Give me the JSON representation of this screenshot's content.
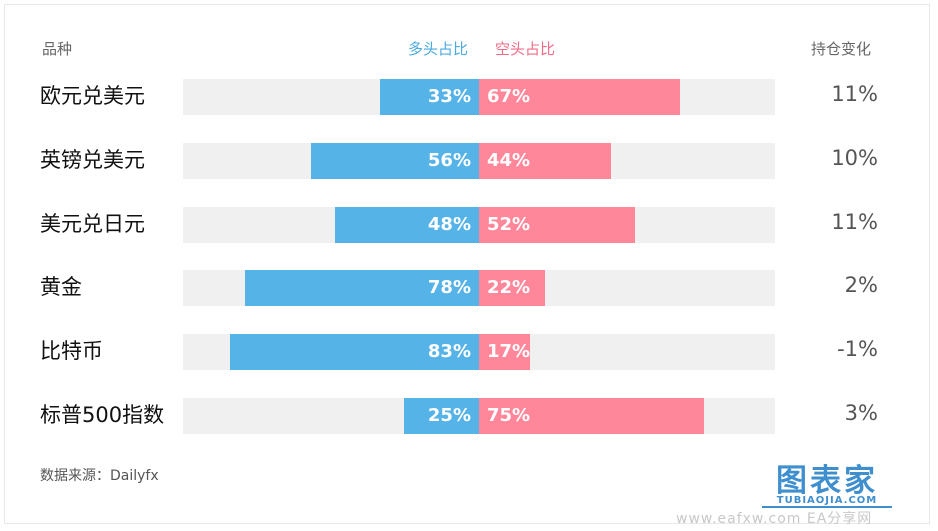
{
  "headers": {
    "name": "品种",
    "long": "多头占比",
    "short": "空头占比",
    "change": "持仓变化"
  },
  "colors": {
    "long": "#55b3e8",
    "short": "#ff8799",
    "track": "#f0f0f0",
    "long_header": "#4aa9de",
    "short_header": "#f26b85"
  },
  "chart_data": {
    "type": "bar",
    "orientation": "horizontal",
    "layout": "diverging",
    "categories": [
      "欧元兑美元",
      "英镑兑美元",
      "美元兑日元",
      "黄金",
      "比特币",
      "标普500指数"
    ],
    "series": [
      {
        "name": "多头占比",
        "values": [
          33,
          56,
          48,
          78,
          83,
          25
        ],
        "labels": [
          "33%",
          "56%",
          "48%",
          "78%",
          "83%",
          "25%"
        ]
      },
      {
        "name": "空头占比",
        "values": [
          67,
          44,
          52,
          22,
          17,
          75
        ],
        "labels": [
          "67%",
          "44%",
          "52%",
          "22%",
          "17%",
          "75%"
        ]
      }
    ],
    "extra_column": {
      "name": "持仓变化",
      "values": [
        "11%",
        "10%",
        "11%",
        "2%",
        "-1%",
        "3%"
      ]
    },
    "xlim": [
      0,
      100
    ]
  },
  "source": "数据来源：Dailyfx",
  "logo": {
    "main": "图表家",
    "sub": "TUBIAOJIA.COM"
  },
  "watermark": "www.eafxw.com  EA分享网"
}
